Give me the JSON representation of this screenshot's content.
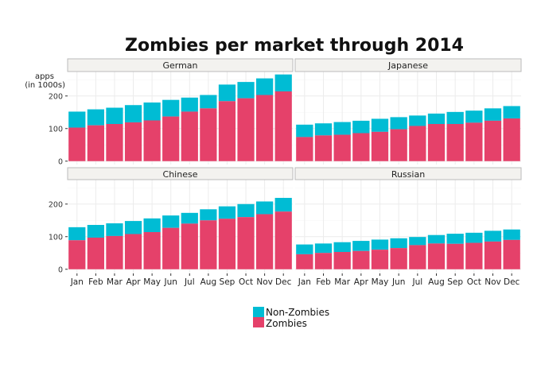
{
  "chart_data": {
    "type": "bar",
    "stacked": true,
    "title": "Zombies per market through 2014",
    "ylabel": "apps\n(in 1000s)",
    "ylabel_lines": [
      "apps",
      "(in 1000s)"
    ],
    "xlabel": "",
    "ylim": [
      0,
      275
    ],
    "yticks": [
      0,
      100,
      200
    ],
    "grid": true,
    "legend_position": "bottom",
    "categories": [
      "Jan",
      "Feb",
      "Mar",
      "Apr",
      "May",
      "Jun",
      "Jul",
      "Aug",
      "Sep",
      "Oct",
      "Nov",
      "Dec"
    ],
    "legend": [
      {
        "name": "Non-Zombies",
        "color": "#00bcd4"
      },
      {
        "name": "Zombies",
        "color": "#e5416a"
      }
    ],
    "panels": [
      {
        "name": "German",
        "zombies": [
          103,
          110,
          114,
          119,
          125,
          137,
          152,
          162,
          184,
          193,
          203,
          214
        ],
        "total": [
          152,
          159,
          164,
          172,
          180,
          188,
          195,
          203,
          235,
          243,
          254,
          266
        ]
      },
      {
        "name": "Japanese",
        "zombies": [
          74,
          79,
          81,
          86,
          90,
          98,
          108,
          114,
          114,
          118,
          124,
          131
        ],
        "total": [
          112,
          116,
          120,
          124,
          130,
          135,
          140,
          146,
          151,
          155,
          162,
          169
        ]
      },
      {
        "name": "Chinese",
        "zombies": [
          89,
          97,
          102,
          108,
          114,
          127,
          140,
          150,
          155,
          160,
          169,
          177
        ],
        "total": [
          129,
          136,
          141,
          148,
          156,
          165,
          173,
          184,
          193,
          200,
          208,
          219
        ]
      },
      {
        "name": "Russian",
        "zombies": [
          46,
          50,
          53,
          56,
          60,
          65,
          74,
          79,
          78,
          81,
          85,
          90
        ],
        "total": [
          76,
          79,
          83,
          87,
          91,
          95,
          99,
          105,
          109,
          112,
          118,
          122
        ]
      }
    ]
  }
}
